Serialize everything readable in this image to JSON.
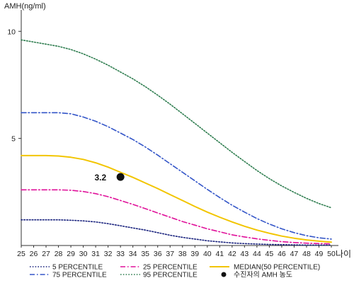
{
  "chart_data": {
    "type": "line",
    "ylabel": "AMH(ng/ml)",
    "xlabel": "나이",
    "x": [
      25,
      26,
      27,
      28,
      29,
      30,
      31,
      32,
      33,
      34,
      35,
      36,
      37,
      38,
      39,
      40,
      41,
      42,
      43,
      44,
      45,
      46,
      47,
      48,
      49,
      50
    ],
    "xlim": [
      25,
      50
    ],
    "ylim": [
      0,
      11
    ],
    "yticks": [
      5,
      10
    ],
    "grid": false,
    "series": [
      {
        "name": "5 PERCENTILE",
        "color": "#1a237e",
        "dash": "dotted",
        "values": [
          1.2,
          1.2,
          1.2,
          1.2,
          1.18,
          1.15,
          1.1,
          1.02,
          0.92,
          0.82,
          0.72,
          0.6,
          0.48,
          0.38,
          0.3,
          0.22,
          0.17,
          0.12,
          0.09,
          0.07,
          0.05,
          0.04,
          0.03,
          0.02,
          0.02,
          0.02
        ]
      },
      {
        "name": "25 PERCENTILE",
        "color": "#e0119a",
        "dash": "dashdot",
        "values": [
          2.6,
          2.6,
          2.6,
          2.6,
          2.58,
          2.52,
          2.42,
          2.28,
          2.1,
          1.92,
          1.72,
          1.52,
          1.32,
          1.12,
          0.95,
          0.78,
          0.64,
          0.5,
          0.4,
          0.31,
          0.24,
          0.18,
          0.14,
          0.11,
          0.09,
          0.08
        ]
      },
      {
        "name": "MEDIAN(50 PERCENTILE)",
        "color": "#f2c500",
        "dash": "solid",
        "values": [
          4.2,
          4.2,
          4.2,
          4.18,
          4.12,
          4.02,
          3.86,
          3.66,
          3.42,
          3.18,
          2.92,
          2.66,
          2.38,
          2.1,
          1.82,
          1.56,
          1.32,
          1.1,
          0.9,
          0.72,
          0.57,
          0.44,
          0.34,
          0.26,
          0.2,
          0.16
        ]
      },
      {
        "name": "75 PERCENTILE",
        "color": "#3355c8",
        "dash": "dashdot",
        "values": [
          6.2,
          6.2,
          6.2,
          6.2,
          6.15,
          6.0,
          5.8,
          5.55,
          5.25,
          4.95,
          4.6,
          4.22,
          3.82,
          3.42,
          3.02,
          2.62,
          2.24,
          1.88,
          1.56,
          1.26,
          1.0,
          0.78,
          0.6,
          0.46,
          0.36,
          0.3
        ]
      },
      {
        "name": "95 PERCENTILE",
        "color": "#2e7d4f",
        "dash": "dotted",
        "values": [
          9.6,
          9.5,
          9.4,
          9.3,
          9.15,
          8.95,
          8.7,
          8.42,
          8.1,
          7.78,
          7.42,
          7.02,
          6.6,
          6.15,
          5.7,
          5.25,
          4.8,
          4.35,
          3.92,
          3.5,
          3.12,
          2.78,
          2.48,
          2.2,
          1.96,
          1.76
        ]
      }
    ],
    "patient": {
      "name": "수진자의 AMH 농도",
      "x": 33,
      "y": 3.2,
      "label": "3.2",
      "color": "#111111"
    },
    "legend_position": "bottom"
  }
}
